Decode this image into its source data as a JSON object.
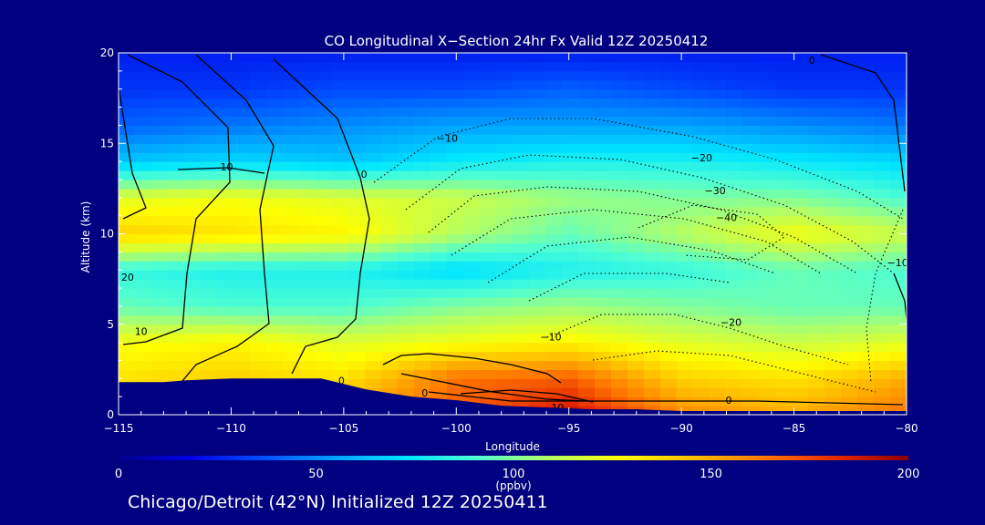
{
  "chart_data": {
    "type": "heatmap",
    "title": "CO Longitudinal X−Section 24hr  Fx Valid 12Z 20250412",
    "xlabel": "Longitude",
    "ylabel": "Altitude (km)",
    "xlim": [
      -115,
      -80
    ],
    "ylim": [
      0,
      20
    ],
    "x_ticks": [
      -115,
      -110,
      -105,
      -100,
      -95,
      -90,
      -85,
      -80
    ],
    "x_tick_labels": [
      "−115",
      "−110",
      "−105",
      "−100",
      "−95",
      "−90",
      "−85",
      "−80"
    ],
    "y_ticks": [
      0,
      5,
      10,
      15,
      20
    ],
    "y_tick_labels": [
      "0",
      "5",
      "10",
      "15",
      "20"
    ],
    "colorbar": {
      "min": 0,
      "max": 200,
      "unit": "(ppbv)",
      "tick_values": [
        0,
        50,
        100,
        150,
        200
      ],
      "tick_labels": [
        "0",
        "50",
        "100",
        "150",
        "200"
      ],
      "colors": [
        "#00008c",
        "#0000e6",
        "#0050ff",
        "#00a0ff",
        "#00e6ff",
        "#50ffd2",
        "#b4ff64",
        "#ffff00",
        "#ffbe00",
        "#ff7800",
        "#e62800",
        "#8c0000"
      ]
    },
    "co_field": {
      "x": [
        -115,
        -110,
        -105,
        -100,
        -95,
        -90,
        -85,
        -80
      ],
      "y": [
        0,
        2,
        4,
        6,
        8,
        10,
        12,
        14,
        16,
        18,
        20
      ],
      "values_ppbv": [
        [
          140,
          150,
          155,
          170,
          190,
          160,
          150,
          165
        ],
        [
          135,
          140,
          135,
          165,
          170,
          140,
          135,
          150
        ],
        [
          125,
          130,
          120,
          125,
          130,
          120,
          115,
          120
        ],
        [
          95,
          90,
          90,
          100,
          105,
          100,
          95,
          95
        ],
        [
          85,
          80,
          80,
          70,
          80,
          85,
          95,
          90
        ],
        [
          140,
          135,
          130,
          110,
          95,
          110,
          125,
          115
        ],
        [
          120,
          125,
          120,
          115,
          105,
          100,
          100,
          90
        ],
        [
          65,
          70,
          65,
          75,
          80,
          80,
          75,
          70
        ],
        [
          40,
          45,
          50,
          55,
          55,
          55,
          50,
          45
        ],
        [
          30,
          30,
          35,
          35,
          40,
          35,
          30,
          30
        ],
        [
          25,
          25,
          25,
          25,
          25,
          25,
          25,
          25
        ]
      ]
    },
    "contour_labels": [
      {
        "text": "10",
        "lon": -110.2,
        "alt": 13.5
      },
      {
        "text": "0",
        "lon": -104.1,
        "alt": 13.1
      },
      {
        "text": "−10",
        "lon": -100.4,
        "alt": 15.1
      },
      {
        "text": "−20",
        "lon": -89.1,
        "alt": 14.0
      },
      {
        "text": "−30",
        "lon": -88.5,
        "alt": 12.2
      },
      {
        "text": "−40",
        "lon": -88.0,
        "alt": 10.7
      },
      {
        "text": "−10",
        "lon": -80.4,
        "alt": 8.2
      },
      {
        "text": "20",
        "lon": -114.6,
        "alt": 7.4
      },
      {
        "text": "10",
        "lon": -114.0,
        "alt": 4.4
      },
      {
        "text": "−20",
        "lon": -87.8,
        "alt": 4.9
      },
      {
        "text": "−10",
        "lon": -95.8,
        "alt": 4.1
      },
      {
        "text": "0",
        "lon": -105.1,
        "alt": 1.7
      },
      {
        "text": "0",
        "lon": -101.4,
        "alt": 1.0
      },
      {
        "text": "0",
        "lon": -87.9,
        "alt": 0.6
      },
      {
        "text": "10",
        "lon": -95.5,
        "alt": 0.2
      },
      {
        "text": "0",
        "lon": -84.2,
        "alt": 19.4
      }
    ],
    "terrain": {
      "lon": [
        -115,
        -113,
        -112,
        -110,
        -108,
        -106,
        -104,
        -102,
        -100,
        -98,
        -96,
        -94,
        -92,
        -90,
        -85,
        -80
      ],
      "alt": [
        1.8,
        1.8,
        1.9,
        2.0,
        2.0,
        2.0,
        1.4,
        1.0,
        0.8,
        0.5,
        0.4,
        0.3,
        0.3,
        0.2,
        0.2,
        0.2
      ]
    }
  },
  "footer": "Chicago/Detroit (42°N) Initialized 12Z 20250411"
}
